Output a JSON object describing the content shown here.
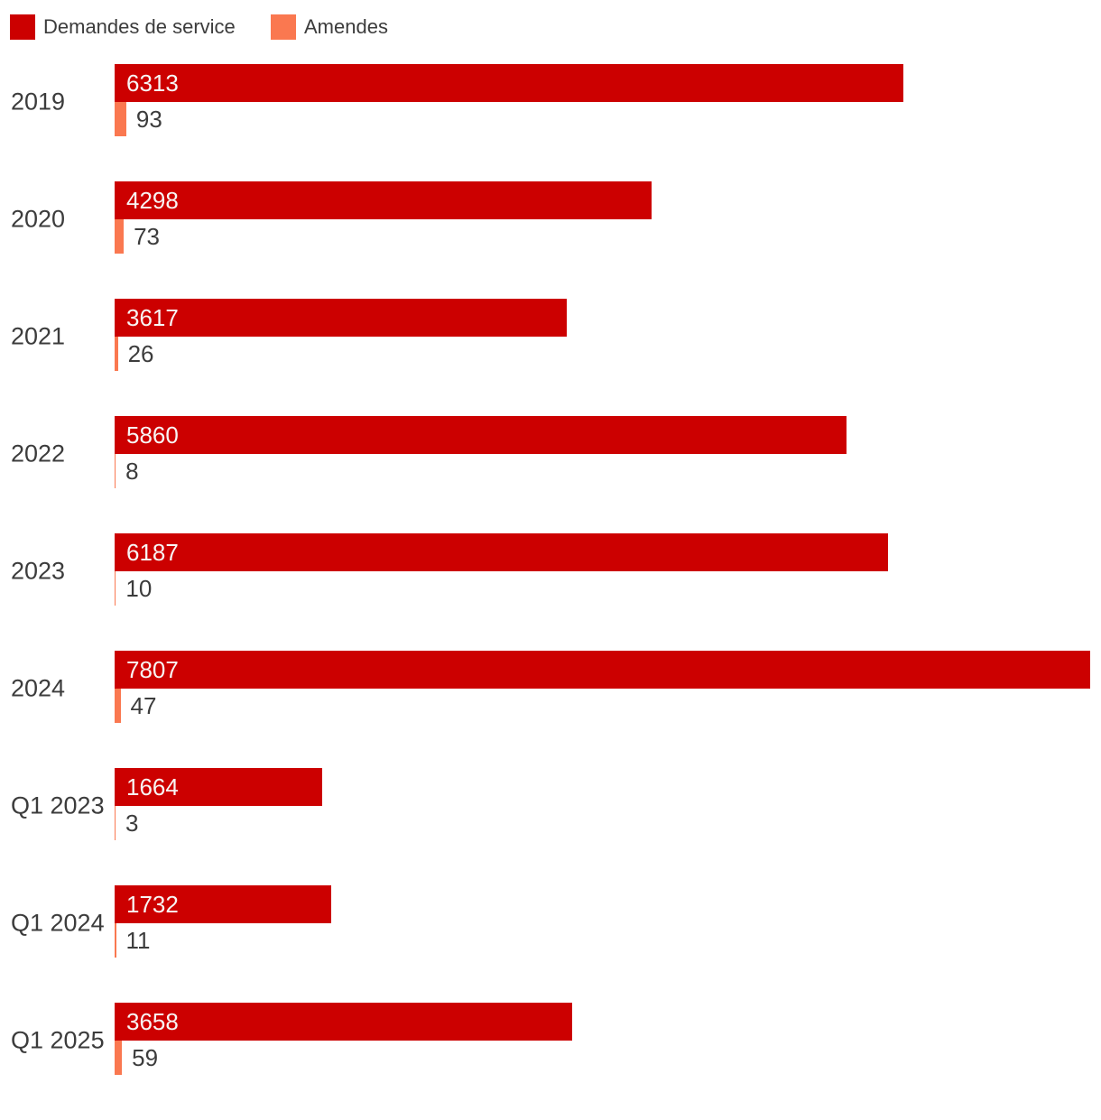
{
  "colors": {
    "background": "#ffffff",
    "demandes_red": "#cc0000",
    "amendes_orange": "#fa7850",
    "label_text": "#3c3c3c",
    "bar_value_text": "#f8f5f4"
  },
  "chart_data": {
    "type": "bar",
    "orientation": "horizontal",
    "title": "",
    "xlabel": "",
    "ylabel": "",
    "categories": [
      "2019",
      "2020",
      "2021",
      "2022",
      "2023",
      "2024",
      "Q1 2023",
      "Q1 2024",
      "Q1 2025"
    ],
    "series": [
      {
        "name": "Demandes de service",
        "color": "#cc0000",
        "values": [
          6313,
          4298,
          3617,
          5860,
          6187,
          7807,
          1664,
          1732,
          3658
        ]
      },
      {
        "name": "Amendes",
        "color": "#fa7850",
        "values": [
          93,
          73,
          26,
          8,
          10,
          47,
          3,
          11,
          59
        ]
      }
    ],
    "xlim": [
      0,
      7807
    ],
    "grid": false,
    "legend_position": "top",
    "value_labels": true
  }
}
